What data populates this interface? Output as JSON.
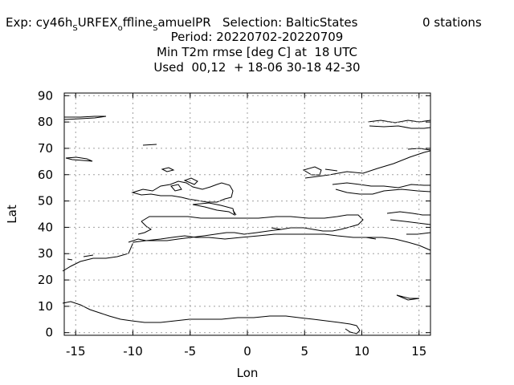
{
  "title": {
    "exp_prefix": "Exp: cy46h",
    "exp_sub1": "S",
    "exp_mid1": "URFEX",
    "exp_sub2": "o",
    "exp_mid2": "ffline",
    "exp_sub3": "S",
    "exp_mid3": "amuelPR",
    "selection": "Selection: BalticStates",
    "stations": "0 stations",
    "period": "Period: 20220702-20220709",
    "variable": "Min T2m rmse [deg C] at  18 UTC",
    "used": "Used  00,12  + 18-06 30-18 42-30"
  },
  "chart_data": {
    "type": "scatter",
    "xlabel": "Lon",
    "ylabel": "Lat",
    "xlim": [
      -16,
      16
    ],
    "ylim": [
      -1,
      91
    ],
    "xticks": [
      -15,
      -10,
      -5,
      0,
      5,
      10,
      15
    ],
    "yticks": [
      0,
      10,
      20,
      30,
      40,
      50,
      60,
      70,
      80,
      90
    ],
    "grid": true,
    "series": [],
    "background": "coastline map outline"
  }
}
